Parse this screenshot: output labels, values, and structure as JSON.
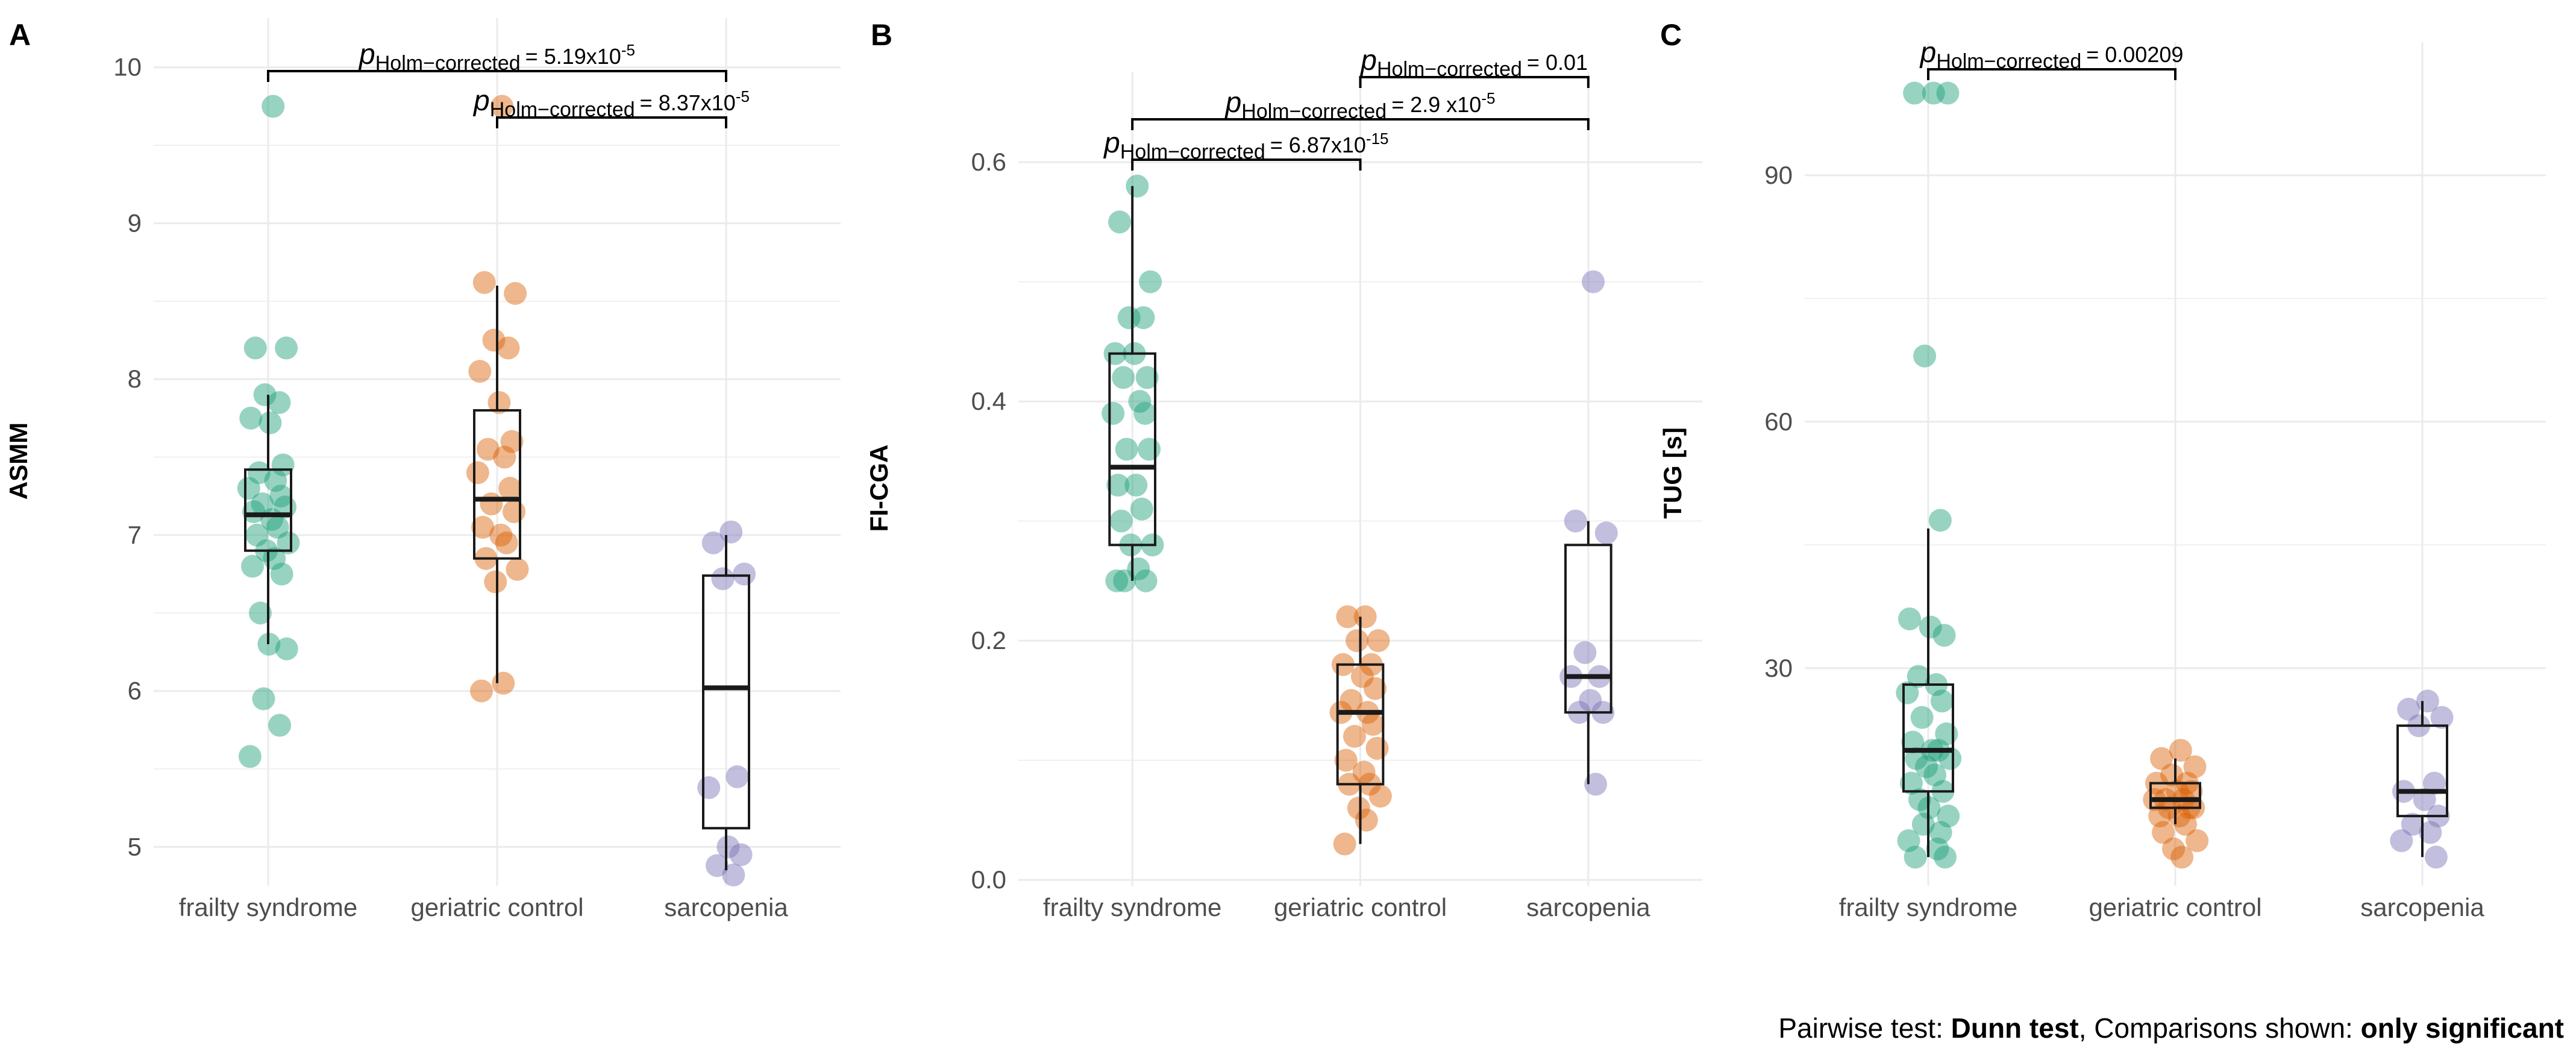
{
  "footer": {
    "prefix": "Pairwise test: ",
    "test": "Dunn test",
    "middle": ", Comparisons shown: ",
    "shown": "only significant"
  },
  "colors": {
    "frailty syndrome": "#1b9e77",
    "geriatric control": "#d95f02",
    "sarcopenia": "#7570b3",
    "grid": "#ebebeb",
    "box": "#1a1a1a"
  },
  "chart_data": [
    {
      "type": "box",
      "panel": "A",
      "ylabel": "ASMM",
      "categories": [
        "frailty syndrome",
        "geriatric control",
        "sarcopenia"
      ],
      "ylim": [
        4.75,
        10.2
      ],
      "yticks": [
        5,
        6,
        7,
        8,
        9,
        10
      ],
      "boxes": [
        {
          "name": "frailty syndrome",
          "q1": 6.9,
          "median": 7.13,
          "q3": 7.42,
          "lower": 6.3,
          "upper": 7.9
        },
        {
          "name": "geriatric control",
          "q1": 6.85,
          "median": 7.23,
          "q3": 7.8,
          "lower": 6.05,
          "upper": 8.6
        },
        {
          "name": "sarcopenia",
          "q1": 5.12,
          "median": 6.02,
          "q3": 6.74,
          "lower": 4.85,
          "upper": 7.0
        }
      ],
      "points": [
        {
          "group": "frailty syndrome",
          "values": [
            9.75,
            8.2,
            8.2,
            7.9,
            7.85,
            7.75,
            7.72,
            7.45,
            7.4,
            7.35,
            7.3,
            7.25,
            7.2,
            7.18,
            7.15,
            7.1,
            7.05,
            7.0,
            6.95,
            6.9,
            6.85,
            6.8,
            6.75,
            6.5,
            6.3,
            6.27,
            5.95,
            5.78,
            5.58
          ]
        },
        {
          "group": "geriatric control",
          "values": [
            9.75,
            8.62,
            8.55,
            8.25,
            8.2,
            8.05,
            7.85,
            7.6,
            7.55,
            7.5,
            7.4,
            7.3,
            7.2,
            7.15,
            7.05,
            7.0,
            6.95,
            6.85,
            6.78,
            6.7,
            6.05,
            6.0
          ]
        },
        {
          "group": "sarcopenia",
          "values": [
            7.02,
            6.95,
            6.75,
            6.72,
            5.45,
            5.38,
            5.0,
            4.95,
            4.88,
            4.82
          ]
        }
      ],
      "brackets": [
        {
          "from": "geriatric control",
          "to": "sarcopenia",
          "label_p": "p",
          "label_sub": "Holm−corrected",
          "label_value": "= 8.37x10",
          "label_exp": "-5"
        },
        {
          "from": "frailty syndrome",
          "to": "sarcopenia",
          "label_p": "p",
          "label_sub": "Holm−corrected",
          "label_value": "= 5.19x10",
          "label_exp": "-5"
        }
      ]
    },
    {
      "type": "box",
      "panel": "B",
      "ylabel": "FI-CGA",
      "categories": [
        "frailty syndrome",
        "geriatric control",
        "sarcopenia"
      ],
      "ylim": [
        -0.005,
        0.66
      ],
      "yticks": [
        0.0,
        0.2,
        0.4,
        0.6
      ],
      "ytick_labels": [
        "0.0",
        "0.2",
        "0.4",
        "0.6"
      ],
      "boxes": [
        {
          "name": "frailty syndrome",
          "q1": 0.28,
          "median": 0.345,
          "q3": 0.44,
          "lower": 0.25,
          "upper": 0.58
        },
        {
          "name": "geriatric control",
          "q1": 0.08,
          "median": 0.14,
          "q3": 0.18,
          "lower": 0.03,
          "upper": 0.22
        },
        {
          "name": "sarcopenia",
          "q1": 0.14,
          "median": 0.17,
          "q3": 0.28,
          "lower": 0.08,
          "upper": 0.3
        }
      ],
      "points": [
        {
          "group": "frailty syndrome",
          "values": [
            0.58,
            0.55,
            0.5,
            0.47,
            0.47,
            0.44,
            0.44,
            0.42,
            0.42,
            0.4,
            0.39,
            0.39,
            0.36,
            0.36,
            0.33,
            0.33,
            0.31,
            0.3,
            0.28,
            0.28,
            0.26,
            0.25,
            0.25,
            0.25
          ]
        },
        {
          "group": "geriatric control",
          "values": [
            0.22,
            0.22,
            0.2,
            0.2,
            0.18,
            0.18,
            0.17,
            0.16,
            0.15,
            0.14,
            0.14,
            0.13,
            0.12,
            0.11,
            0.1,
            0.09,
            0.08,
            0.08,
            0.07,
            0.06,
            0.05,
            0.03
          ]
        },
        {
          "group": "sarcopenia",
          "values": [
            0.5,
            0.3,
            0.29,
            0.19,
            0.17,
            0.17,
            0.15,
            0.14,
            0.14,
            0.08
          ]
        }
      ],
      "brackets": [
        {
          "from": "frailty syndrome",
          "to": "geriatric control",
          "label_p": "p",
          "label_sub": "Holm−corrected",
          "label_value": "= 6.87x10",
          "label_exp": "-15"
        },
        {
          "from": "frailty syndrome",
          "to": "sarcopenia",
          "label_p": "p",
          "label_sub": "Holm−corrected",
          "label_value": "= 2.9 x10",
          "label_exp": "-5"
        },
        {
          "from": "geriatric control",
          "to": "sarcopenia",
          "label_p": "p",
          "label_sub": "Holm−corrected",
          "label_value": "= 0.01",
          "label_exp": ""
        }
      ]
    },
    {
      "type": "box",
      "panel": "C",
      "ylabel": "TUG [s]",
      "categories": [
        "frailty syndrome",
        "geriatric control",
        "sarcopenia"
      ],
      "ylim": [
        3.5,
        104
      ],
      "yticks": [
        30,
        60,
        90
      ],
      "boxes": [
        {
          "name": "frailty syndrome",
          "q1": 15,
          "median": 20,
          "q3": 28,
          "lower": 7,
          "upper": 47
        },
        {
          "name": "geriatric control",
          "q1": 13,
          "median": 14,
          "q3": 16,
          "lower": 11,
          "upper": 19
        },
        {
          "name": "sarcopenia",
          "q1": 12,
          "median": 15,
          "q3": 23,
          "lower": 7,
          "upper": 26
        }
      ],
      "points": [
        {
          "group": "frailty syndrome",
          "values": [
            100,
            100,
            100,
            68,
            48,
            36,
            35,
            34,
            29,
            28,
            27,
            26,
            24,
            22,
            21,
            20,
            20,
            19,
            19,
            18,
            17,
            16,
            15,
            14,
            13,
            12,
            11,
            10,
            9,
            8,
            7,
            7
          ]
        },
        {
          "group": "geriatric control",
          "values": [
            20,
            19,
            18,
            17,
            16,
            16,
            15,
            15,
            14,
            14,
            14,
            13,
            13,
            13,
            12,
            12,
            11,
            10,
            9,
            8,
            7
          ]
        },
        {
          "group": "sarcopenia",
          "values": [
            26,
            25,
            24,
            23,
            16,
            15,
            14,
            12,
            11,
            10,
            9,
            7
          ]
        }
      ],
      "brackets": [
        {
          "from": "frailty syndrome",
          "to": "geriatric control",
          "label_p": "p",
          "label_sub": "Holm−corrected",
          "label_value": "= 0.00209",
          "label_exp": ""
        }
      ]
    }
  ]
}
